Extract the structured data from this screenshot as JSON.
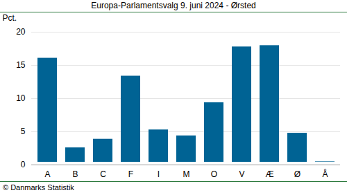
{
  "chart_data": {
    "type": "bar",
    "title": "Europa-Parlamentsvalg 9. juni 2024 - Ørsted",
    "y_label": "Pct.",
    "caption": "© Danmarks Statistik",
    "categories": [
      "A",
      "B",
      "C",
      "F",
      "I",
      "M",
      "O",
      "V",
      "Æ",
      "Ø",
      "Å"
    ],
    "values": [
      16.5,
      3.0,
      4.3,
      13.8,
      5.7,
      4.8,
      9.8,
      18.2,
      18.4,
      5.2,
      0.9
    ],
    "color": "#006394",
    "ylim": [
      0,
      20
    ],
    "yticks": [
      0,
      5,
      10,
      15,
      20
    ],
    "grid": true
  }
}
